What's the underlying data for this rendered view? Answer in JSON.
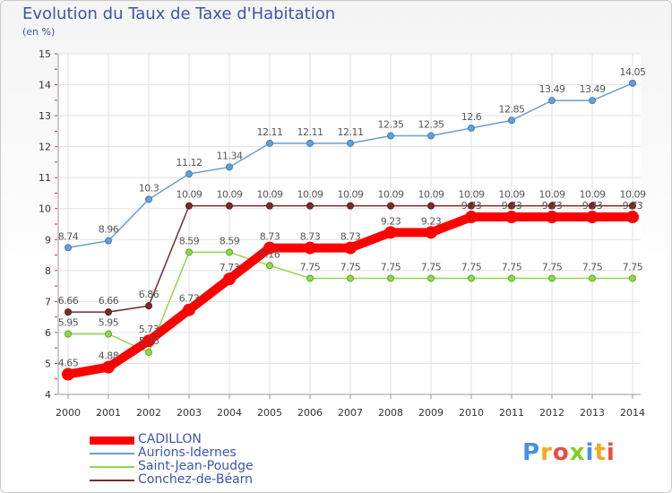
{
  "chart_data": {
    "type": "line",
    "title": "Evolution du Taux de Taxe d'Habitation",
    "subtitle": "(en %)",
    "x": [
      "2000",
      "2001",
      "2002",
      "2003",
      "2004",
      "2005",
      "2006",
      "2007",
      "2008",
      "2009",
      "2010",
      "2011",
      "2012",
      "2013",
      "2014"
    ],
    "ylim": [
      4,
      15
    ],
    "yticks": [
      4,
      5,
      6,
      7,
      8,
      9,
      10,
      11,
      12,
      13,
      14,
      15
    ],
    "grid": true,
    "legend_position": "bottom-left",
    "series": [
      {
        "name": "CADILLON",
        "color": "#ff0000",
        "values": [
          4.65,
          4.88,
          5.73,
          6.73,
          7.73,
          8.73,
          8.73,
          8.73,
          9.23,
          9.23,
          9.73,
          9.73,
          9.73,
          9.73,
          9.73
        ],
        "labels": [
          "4.65",
          "4.88",
          "5.73",
          "6.73",
          "7.73",
          "8.73",
          "8.73",
          "8.73",
          "9.23",
          "9.23",
          "9.73",
          "9.73",
          "9.73",
          "9.73",
          "9.73"
        ]
      },
      {
        "name": "Aurions-Idernes",
        "color": "#6a9fd1",
        "values": [
          8.74,
          8.96,
          10.3,
          11.12,
          11.34,
          12.11,
          12.11,
          12.11,
          12.35,
          12.35,
          12.6,
          12.85,
          13.49,
          13.49,
          14.05
        ],
        "labels": [
          "8.74",
          "8.96",
          "10.3",
          "11.12",
          "11.34",
          "12.11",
          "12.11",
          "12.11",
          "12.35",
          "12.35",
          "12.6",
          "12.85",
          "13.49",
          "13.49",
          "14.05"
        ]
      },
      {
        "name": "Saint-Jean-Poudge",
        "color": "#8ed84a",
        "values": [
          5.95,
          5.95,
          5.36,
          8.59,
          8.59,
          8.16,
          7.75,
          7.75,
          7.75,
          7.75,
          7.75,
          7.75,
          7.75,
          7.75,
          7.75
        ],
        "labels": [
          "5.95",
          "5.95",
          "5.36",
          "8.59",
          "8.59",
          "8.16",
          "7.75",
          "7.75",
          "7.75",
          "7.75",
          "7.75",
          "7.75",
          "7.75",
          "7.75",
          "7.75"
        ]
      },
      {
        "name": "Conchez-de-Béarn",
        "color": "#7b2a2a",
        "values": [
          6.66,
          6.66,
          6.86,
          10.09,
          10.09,
          10.09,
          10.09,
          10.09,
          10.09,
          10.09,
          10.09,
          10.09,
          10.09,
          10.09,
          10.09
        ],
        "labels": [
          "6.66",
          "6.66",
          "6.86",
          "10.09",
          "10.09",
          "10.09",
          "10.09",
          "10.09",
          "10.09",
          "10.09",
          "10.09",
          "10.09",
          "10.09",
          "10.09",
          "10.09"
        ]
      }
    ]
  },
  "brand": {
    "logo_text": "Proxiti",
    "logo_colors": [
      "#4a90e2",
      "#f5a623",
      "#e94e3c",
      "#7ed321",
      "#4a90e2",
      "#f5a623",
      "#e94e3c"
    ]
  }
}
